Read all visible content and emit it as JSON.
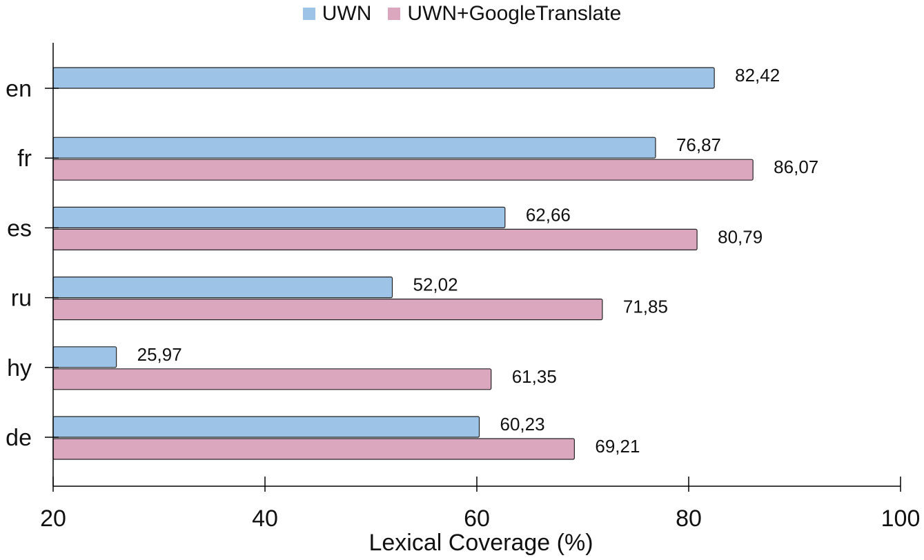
{
  "chart_data": {
    "type": "bar",
    "orientation": "horizontal",
    "title": "",
    "xlabel": "Lexical Coverage (%)",
    "ylabel": "",
    "xlim": [
      20,
      100
    ],
    "xticks": [
      20,
      40,
      60,
      80,
      100
    ],
    "xtick_labels": [
      "20",
      "40",
      "60",
      "80",
      "100"
    ],
    "categories": [
      "en",
      "fr",
      "es",
      "ru",
      "hy",
      "de"
    ],
    "series": [
      {
        "name": "UWN",
        "color": "#9dc3e6",
        "values": [
          82.42,
          76.87,
          62.66,
          52.02,
          25.97,
          60.23
        ],
        "labels": [
          "82,42",
          "76,87",
          "62,66",
          "52,02",
          "25,97",
          "60,23"
        ]
      },
      {
        "name": "UWN+GoogleTranslate",
        "color": "#dba7bf",
        "values": [
          null,
          86.07,
          80.79,
          71.85,
          61.35,
          69.21
        ],
        "labels": [
          "",
          "86,07",
          "80,79",
          "71,85",
          "61,35",
          "69,21"
        ]
      }
    ],
    "legend_position": "top-center"
  }
}
